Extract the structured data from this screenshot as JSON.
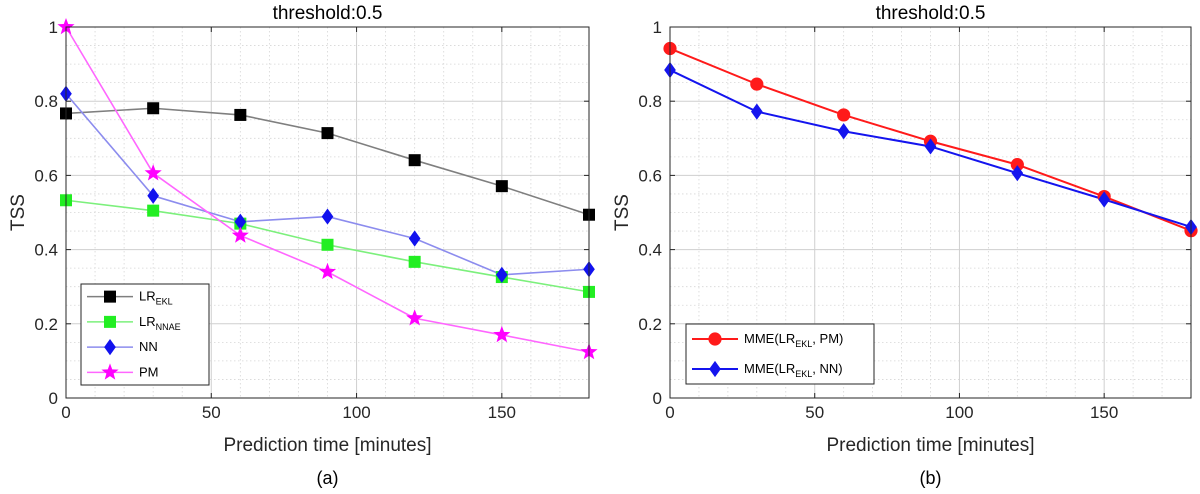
{
  "chart_data": [
    {
      "type": "line",
      "panel_label": "(a)",
      "title": "threshold:0.5",
      "xlabel": "Prediction time [minutes]",
      "ylabel": "TSS",
      "xlim": [
        0,
        180
      ],
      "ylim": [
        0,
        1
      ],
      "xticks": [
        0,
        50,
        100,
        150
      ],
      "yticks": [
        0,
        0.2,
        0.4,
        0.6,
        0.8,
        1
      ],
      "ytick_labels": [
        "0",
        "0.2",
        "0.4",
        "0.6",
        "0.8",
        "1"
      ],
      "grid": true,
      "legend_position": "bottom-left",
      "x": [
        0,
        30,
        60,
        90,
        120,
        150,
        180
      ],
      "series": [
        {
          "name": "LR",
          "subscript": "EKL",
          "color": "#7f7f7f",
          "marker_color": "#000000",
          "marker": "square",
          "values": [
            0.767,
            0.781,
            0.763,
            0.714,
            0.641,
            0.571,
            0.494
          ]
        },
        {
          "name": "LR",
          "subscript": "NNAE",
          "color": "#7cf07c",
          "marker_color": "#22ee22",
          "marker": "square",
          "values": [
            0.533,
            0.505,
            0.47,
            0.413,
            0.367,
            0.326,
            0.286
          ]
        },
        {
          "name": "NN",
          "subscript": "",
          "color": "#8c8cee",
          "marker_color": "#1212ee",
          "marker": "diamond",
          "values": [
            0.82,
            0.545,
            0.475,
            0.489,
            0.43,
            0.332,
            0.347
          ]
        },
        {
          "name": "PM",
          "subscript": "",
          "color": "#ff66ff",
          "marker_color": "#ff00ff",
          "marker": "star",
          "values": [
            1.0,
            0.606,
            0.438,
            0.34,
            0.215,
            0.17,
            0.124
          ]
        }
      ]
    },
    {
      "type": "line",
      "panel_label": "(b)",
      "title": "threshold:0.5",
      "xlabel": "Prediction time [minutes]",
      "ylabel": "TSS",
      "xlim": [
        0,
        180
      ],
      "ylim": [
        0,
        1
      ],
      "xticks": [
        0,
        50,
        100,
        150
      ],
      "yticks": [
        0,
        0.2,
        0.4,
        0.6,
        0.8,
        1
      ],
      "ytick_labels": [
        "0",
        "0.2",
        "0.4",
        "0.6",
        "0.8",
        "1"
      ],
      "grid": true,
      "legend_position": "bottom-left",
      "x": [
        0,
        30,
        60,
        90,
        120,
        150,
        180
      ],
      "series": [
        {
          "name": "MME(LR",
          "subscript": "EKL",
          "name_suffix": ", PM)",
          "color": "#ff1a1a",
          "marker_color": "#ff1a1a",
          "marker": "circle",
          "values": [
            0.942,
            0.846,
            0.763,
            0.692,
            0.629,
            0.543,
            0.451
          ]
        },
        {
          "name": "MME(LR",
          "subscript": "EKL",
          "name_suffix": ", NN)",
          "color": "#1414ee",
          "marker_color": "#1414ee",
          "marker": "diamond",
          "values": [
            0.884,
            0.772,
            0.719,
            0.678,
            0.606,
            0.535,
            0.461
          ]
        }
      ]
    }
  ]
}
